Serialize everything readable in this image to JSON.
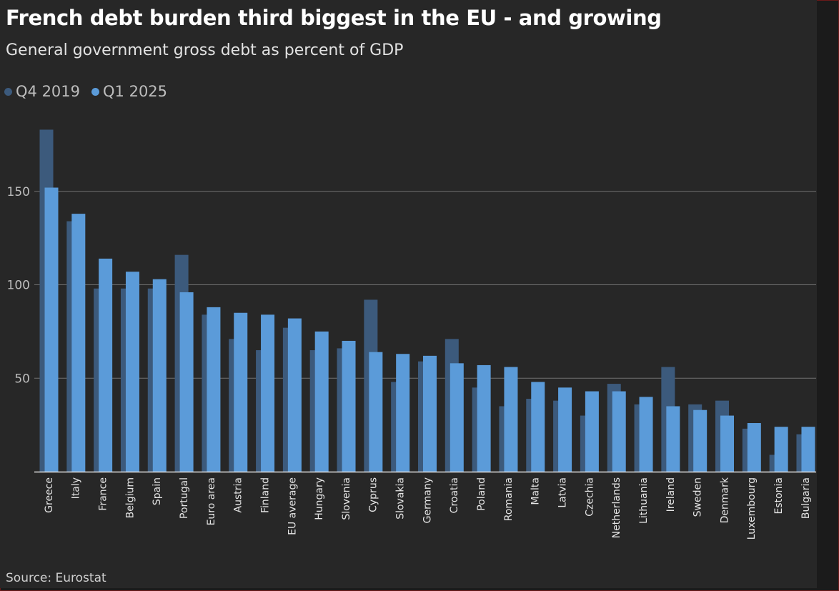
{
  "title": "French debt burden third biggest in the EU - and growing",
  "subtitle": "General government gross debt as percent of GDP",
  "source": "Source: Eurostat",
  "legend": [
    {
      "label": "Q4 2019",
      "color": "#3c5a7c"
    },
    {
      "label": "Q1 2025",
      "color": "#5b9bd9"
    }
  ],
  "chart_data": {
    "type": "bar",
    "categories": [
      "Greece",
      "Italy",
      "France",
      "Belgium",
      "Spain",
      "Portugal",
      "Euro area",
      "Austria",
      "Finland",
      "EU average",
      "Hungary",
      "Slovenia",
      "Cyprus",
      "Slovakia",
      "Germany",
      "Croatia",
      "Poland",
      "Romania",
      "Malta",
      "Latvia",
      "Czechia",
      "Netherlands",
      "Lithuania",
      "Ireland",
      "Sweden",
      "Denmark",
      "Luxembourg",
      "Estonia",
      "Bulgaria"
    ],
    "series": [
      {
        "name": "Q4 2019",
        "color": "#3c5a7c",
        "values": [
          183,
          134,
          98,
          98,
          98,
          116,
          84,
          71,
          65,
          77,
          65,
          66,
          92,
          48,
          59,
          71,
          45,
          35,
          39,
          38,
          30,
          47,
          36,
          56,
          36,
          38,
          23,
          9,
          20
        ]
      },
      {
        "name": "Q1 2025",
        "color": "#5b9bd9",
        "values": [
          152,
          138,
          114,
          107,
          103,
          96,
          88,
          85,
          84,
          82,
          75,
          70,
          64,
          63,
          62,
          58,
          57,
          56,
          48,
          45,
          43,
          43,
          40,
          35,
          33,
          30,
          26,
          24,
          24
        ]
      }
    ],
    "yticks": [
      50,
      100,
      150
    ],
    "ylim": [
      0,
      190
    ],
    "grid": true,
    "legend_position": "top-left"
  }
}
